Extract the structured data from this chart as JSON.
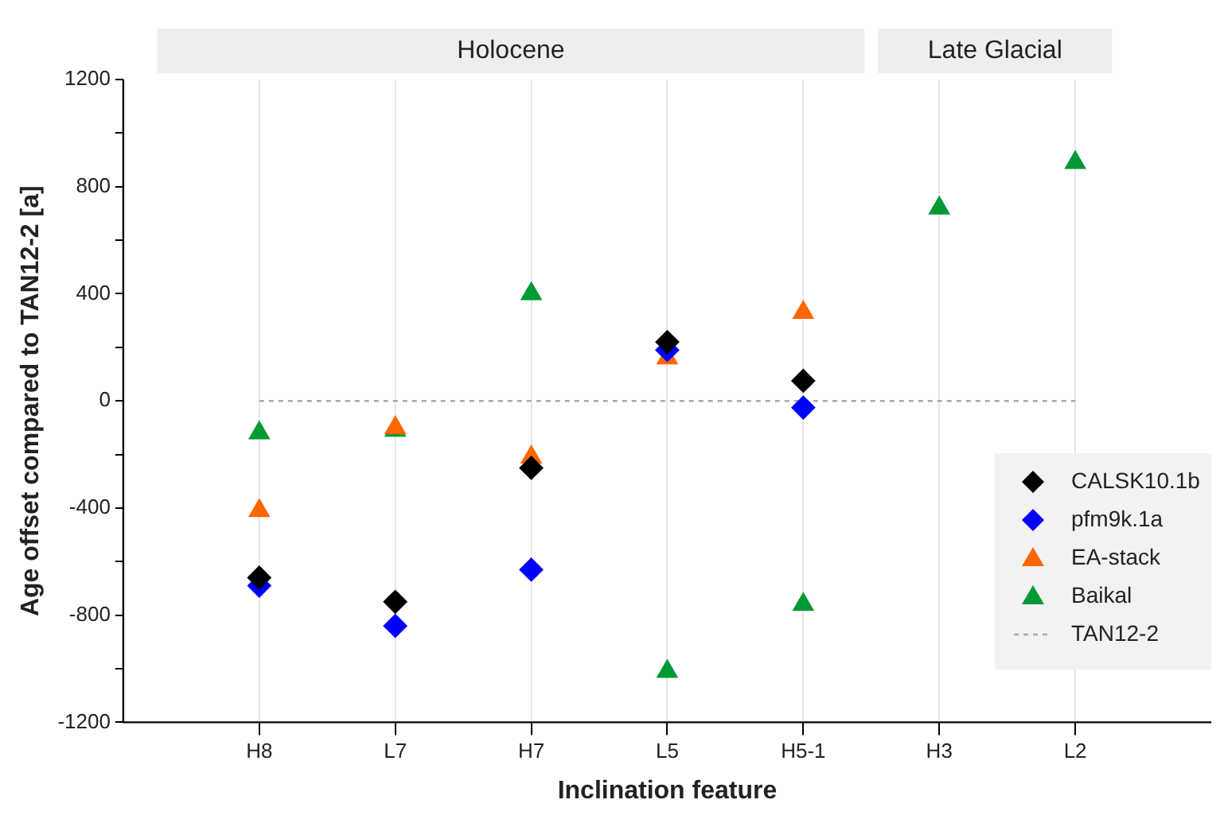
{
  "chart_data": {
    "type": "scatter",
    "xlabel": "Inclination feature",
    "ylabel": "Age offset compared to TAN12-2 [a]",
    "categories": [
      "H8",
      "L7",
      "H7",
      "L5",
      "H5-1",
      "H3",
      "L2"
    ],
    "series": [
      {
        "name": "CALSK10.1b",
        "color": "#000000",
        "marker": "diamond",
        "values": [
          -660,
          -750,
          -250,
          220,
          75,
          null,
          null
        ]
      },
      {
        "name": "pfm9k.1a",
        "color": "#0000ff",
        "marker": "diamond",
        "values": [
          -690,
          -840,
          -630,
          190,
          -25,
          null,
          null
        ]
      },
      {
        "name": "EA-stack",
        "color": "#ff6600",
        "marker": "triangle",
        "values": [
          -410,
          -100,
          -210,
          160,
          330,
          null,
          null
        ]
      },
      {
        "name": "Baikal",
        "color": "#009933",
        "marker": "triangle",
        "values": [
          -120,
          -110,
          400,
          -1010,
          -760,
          720,
          890
        ]
      },
      {
        "name": "TAN12-2",
        "type": "line",
        "color": "#aaaaaa",
        "line_style": "dashed",
        "marker": "none",
        "values": [
          0,
          0,
          0,
          0,
          0,
          0,
          0
        ]
      }
    ],
    "annotations": [
      "Holocene",
      "Late Glacial"
    ],
    "ylim": [
      -1200,
      1200
    ],
    "yticks": [
      -1200,
      {
        "value": -1000,
        "label": null
      },
      -800,
      {
        "value": -600,
        "label": null
      },
      -400,
      {
        "value": -200,
        "label": null
      },
      0,
      {
        "value": 200,
        "label": null
      },
      400,
      {
        "value": 600,
        "label": null
      },
      800,
      {
        "value": 1000,
        "label": null
      },
      1200
    ],
    "grid": "x",
    "legend": "right"
  }
}
